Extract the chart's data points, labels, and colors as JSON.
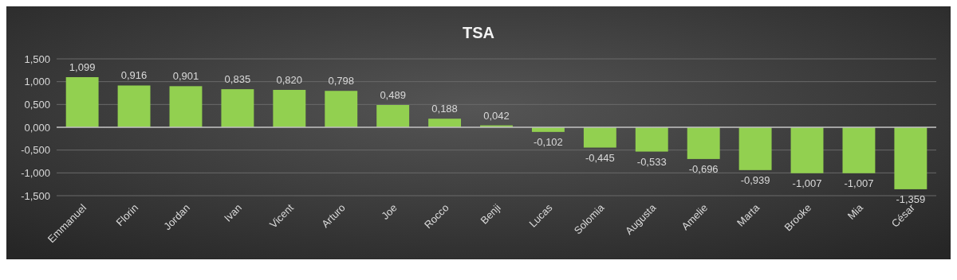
{
  "chart_data": {
    "type": "bar",
    "title": "TSA",
    "categories": [
      "Emmanuel",
      "Florin",
      "Jordan",
      "Ivan",
      "Vicent",
      "Arturo",
      "Joe",
      "Rocco",
      "Benji",
      "Lucas",
      "Solomia",
      "Augusta",
      "Amelie",
      "Marta",
      "Brooke",
      "Mia",
      "César"
    ],
    "values": [
      1.099,
      0.916,
      0.901,
      0.835,
      0.82,
      0.798,
      0.489,
      0.188,
      0.042,
      -0.102,
      -0.445,
      -0.533,
      -0.696,
      -0.939,
      -1.007,
      -1.007,
      -1.359
    ],
    "value_labels": [
      "1,099",
      "0,916",
      "0,901",
      "0,835",
      "0,820",
      "0,798",
      "0,489",
      "0,188",
      "0,042",
      "-0,102",
      "-0,445",
      "-0,533",
      "-0,696",
      "-0,939",
      "-1,007",
      "-1,007",
      "-1,359"
    ],
    "color": "#92d050",
    "ylim": [
      -1.5,
      1.5
    ],
    "yticks": [
      {
        "value": -1.5,
        "label": "-1,500"
      },
      {
        "value": -1,
        "label": "-1,000"
      },
      {
        "value": -0.5,
        "label": "-0,500"
      },
      {
        "value": 0,
        "label": "0,000"
      },
      {
        "value": 0.5,
        "label": "0,500"
      },
      {
        "value": 1,
        "label": "1,000"
      },
      {
        "value": 1.5,
        "label": "1,500"
      }
    ],
    "grid": "y"
  }
}
